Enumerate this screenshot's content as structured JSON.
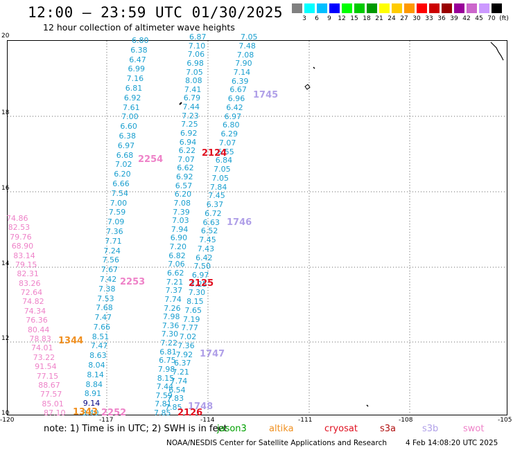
{
  "header": {
    "title": "12:00 — 23:59 UTC 01/30/2025",
    "subtitle": "12 hour collection of altimeter wave heights"
  },
  "color_scale": {
    "unit": "(ft)",
    "colors": [
      "#808080",
      "#00ffff",
      "#00bfff",
      "#0000ff",
      "#00ff00",
      "#00cc00",
      "#009900",
      "#ffff00",
      "#ffcc00",
      "#ff9900",
      "#ff0000",
      "#cc0000",
      "#990000",
      "#990099",
      "#cc66cc",
      "#cc99ff",
      "#000000"
    ],
    "labels": [
      "3",
      "6",
      "9",
      "12",
      "15",
      "18",
      "21",
      "24",
      "27",
      "30",
      "33",
      "36",
      "39",
      "42",
      "45",
      "70",
      "(ft)"
    ]
  },
  "axes": {
    "lat_labels": [
      "20",
      "18",
      "16",
      "14",
      "12",
      "10"
    ],
    "lon_labels": [
      "-120",
      "-117",
      "-114",
      "-111",
      "-108",
      "-105"
    ]
  },
  "tracks": [
    {
      "id": "t1",
      "color": "#1a9fcf",
      "values": [
        "6.80",
        "6.38",
        "6.47",
        "6.99",
        "7.16",
        "6.81",
        "6.92",
        "7.61",
        "7.00",
        "6.60",
        "6.38",
        "6.97",
        "6.68",
        "7.02",
        "6.20",
        "6.66",
        "7.54",
        "7.00",
        "7.59",
        "7.09",
        "7.36",
        "7.71",
        "7.24",
        "7.56",
        "7.67",
        "7.42",
        "7.38",
        "7.53",
        "7.68",
        "7.47",
        "7.66",
        "8.51",
        "7.47",
        "8.63",
        "8.04",
        "8.14",
        "8.84",
        "8.91",
        "9.14",
        "8.40"
      ]
    },
    {
      "id": "t2",
      "color": "#1a9fcf",
      "values": [
        "6.87",
        "7.10",
        "7.06",
        "6.98",
        "7.05",
        "8.08",
        "7.41",
        "6.79",
        "7.44",
        "7.23",
        "7.25",
        "6.92",
        "6.94",
        "6.22",
        "7.07",
        "6.62",
        "6.92",
        "6.57",
        "6.20",
        "7.08",
        "7.39",
        "7.03",
        "7.94",
        "6.90",
        "7.20",
        "6.82",
        "7.06",
        "6.62",
        "7.21",
        "7.37",
        "7.74",
        "7.26",
        "7.98",
        "7.36",
        "7.30",
        "7.22",
        "6.81",
        "6.75",
        "7.98",
        "8.15",
        "7.44",
        "7.59",
        "7.81",
        "7.85"
      ]
    },
    {
      "id": "t3",
      "color": "#1a9fcf",
      "values": [
        "7.05",
        "7.48",
        "7.08",
        "7.90",
        "7.14",
        "6.39",
        "6.67",
        "6.96",
        "6.42",
        "6.97",
        "6.80",
        "6.29",
        "7.07",
        "6.55",
        "6.84",
        "7.05",
        "7.05",
        "7.84",
        "7.45",
        "6.37",
        "6.72",
        "6.63",
        "6.52",
        "7.45",
        "7.43",
        "6.42",
        "7.50",
        "6.97",
        "7.25",
        "7.30",
        "8.15",
        "7.65",
        "7.19",
        "7.77",
        "7.02",
        "7.36",
        "7.92",
        "6.37",
        "7.21",
        "7.74",
        "6.54",
        "7.83",
        "7.85"
      ]
    },
    {
      "id": "t4",
      "color": "#ee82c8",
      "values": [
        "74.86",
        "82.53",
        "79.76",
        "68.90",
        "83.14",
        "79.15",
        "82.31",
        "83.26",
        "72.64",
        "74.82",
        "74.34",
        "76.36",
        "80.44",
        "78.83",
        "74.01",
        "73.22",
        "91.54",
        "77.15",
        "88.67",
        "77.57",
        "85.01",
        "87.10"
      ]
    }
  ],
  "passes": [
    {
      "label": "1745",
      "color": "#b0a0e8"
    },
    {
      "label": "2254",
      "color": "#ee82c8"
    },
    {
      "label": "2124",
      "color": "#e01020"
    },
    {
      "label": "1746",
      "color": "#b0a0e8"
    },
    {
      "label": "2253",
      "color": "#ee82c8"
    },
    {
      "label": "2125",
      "color": "#e01020"
    },
    {
      "label": "1344",
      "color": "#f09020"
    },
    {
      "label": "1747",
      "color": "#b0a0e8"
    },
    {
      "label": "1748",
      "color": "#b0a0e8"
    },
    {
      "label": "1343",
      "color": "#f09020"
    },
    {
      "label": "2252",
      "color": "#ee82c8"
    },
    {
      "label": "2126",
      "color": "#e01020"
    }
  ],
  "footer": {
    "note": "note:  1) Time is in UTC; 2) SWH is in feet",
    "legend": [
      {
        "label": "jason3",
        "color": "#00a000"
      },
      {
        "label": "altika",
        "color": "#f09020"
      },
      {
        "label": "cryosat",
        "color": "#e01020"
      },
      {
        "label": "s3a",
        "color": "#b01010"
      },
      {
        "label": "s3b",
        "color": "#b0a0e8"
      },
      {
        "label": "swot",
        "color": "#ee82c8"
      }
    ],
    "credit": "NOAA/NESDIS Center for Satellite Applications and Research",
    "timestamp": "4 Feb 14:08:20 UTC 2025"
  }
}
